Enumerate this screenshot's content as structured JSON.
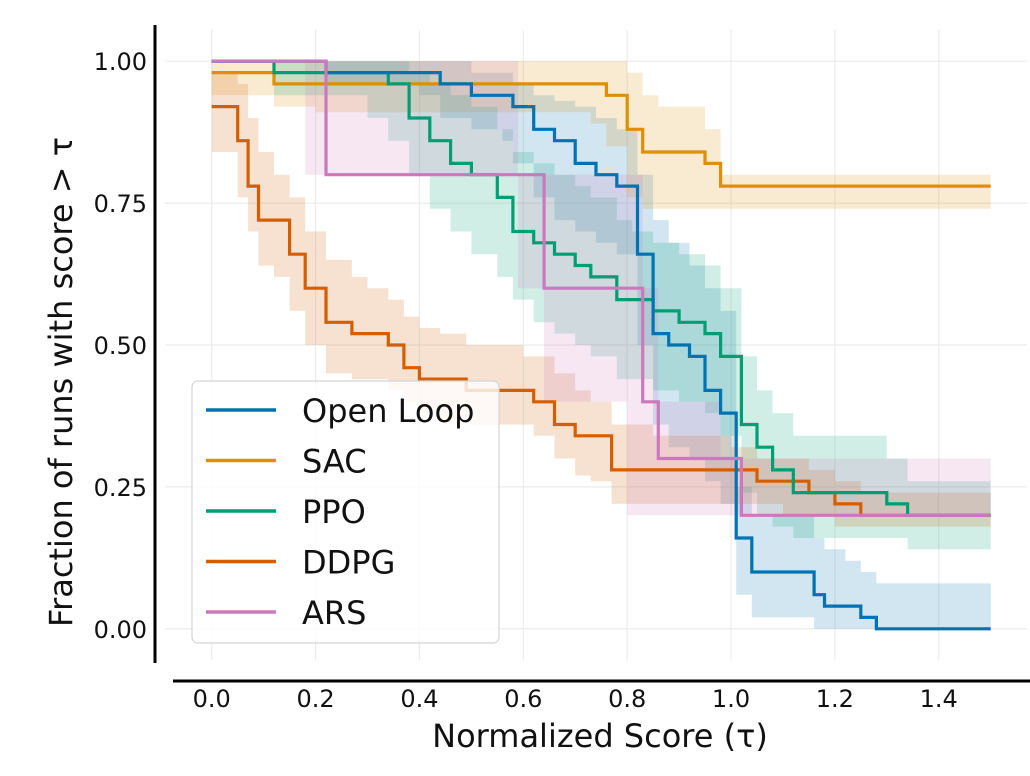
{
  "chart_data": {
    "type": "line",
    "title": "",
    "xlabel": "Normalized Score (τ)",
    "ylabel": "Fraction of runs with score  > τ",
    "xlim": [
      -0.09,
      1.57
    ],
    "ylim": [
      -0.055,
      1.055
    ],
    "x_ticks": [
      0.0,
      0.2,
      0.4,
      0.6,
      0.8,
      1.0,
      1.2,
      1.4
    ],
    "x_tick_labels": [
      "0.0",
      "0.2",
      "0.4",
      "0.6",
      "0.8",
      "1.0",
      "1.2",
      "1.4"
    ],
    "y_ticks": [
      0.0,
      0.25,
      0.5,
      0.75,
      1.0
    ],
    "y_tick_labels": [
      "0.00",
      "0.25",
      "0.50",
      "0.75",
      "1.00"
    ],
    "grid": true,
    "legend_position": "bottom-left",
    "step": true,
    "series": [
      {
        "name": "Open Loop",
        "color": "#0173b2",
        "x": [
          0.0,
          0.2,
          0.22,
          0.4,
          0.44,
          0.5,
          0.56,
          0.58,
          0.62,
          0.66,
          0.7,
          0.74,
          0.78,
          0.82,
          0.85,
          0.88,
          0.92,
          0.95,
          0.98,
          1.01,
          1.04,
          1.12,
          1.16,
          1.18,
          1.22,
          1.25,
          1.28,
          1.5
        ],
        "values": [
          1.0,
          1.0,
          0.98,
          0.98,
          0.96,
          0.94,
          0.94,
          0.92,
          0.88,
          0.86,
          0.82,
          0.8,
          0.78,
          0.66,
          0.52,
          0.5,
          0.48,
          0.42,
          0.38,
          0.16,
          0.1,
          0.1,
          0.06,
          0.04,
          0.04,
          0.02,
          0.0,
          0.0
        ],
        "upper": [
          1.0,
          1.0,
          1.0,
          1.0,
          1.0,
          0.98,
          0.98,
          0.96,
          0.94,
          0.93,
          0.92,
          0.9,
          0.88,
          0.8,
          0.72,
          0.68,
          0.64,
          0.6,
          0.56,
          0.25,
          0.2,
          0.2,
          0.16,
          0.14,
          0.12,
          0.1,
          0.08,
          0.08
        ],
        "lower": [
          1.0,
          1.0,
          0.96,
          0.94,
          0.9,
          0.88,
          0.86,
          0.82,
          0.76,
          0.72,
          0.7,
          0.68,
          0.66,
          0.5,
          0.36,
          0.32,
          0.3,
          0.26,
          0.22,
          0.06,
          0.02,
          0.02,
          0.0,
          0.0,
          0.0,
          0.0,
          0.0,
          0.0
        ]
      },
      {
        "name": "SAC",
        "color": "#de8f05",
        "x": [
          0.0,
          0.09,
          0.12,
          0.2,
          0.3,
          0.5,
          0.6,
          0.73,
          0.76,
          0.8,
          0.83,
          0.86,
          0.92,
          0.95,
          0.98,
          1.5
        ],
        "values": [
          0.98,
          0.98,
          0.96,
          0.96,
          0.96,
          0.96,
          0.96,
          0.96,
          0.94,
          0.88,
          0.84,
          0.84,
          0.84,
          0.82,
          0.78,
          0.78
        ],
        "upper": [
          1.0,
          1.0,
          1.0,
          1.0,
          1.0,
          1.0,
          1.0,
          1.0,
          1.0,
          0.98,
          0.94,
          0.92,
          0.92,
          0.88,
          0.8,
          0.8
        ],
        "lower": [
          0.94,
          0.94,
          0.92,
          0.91,
          0.91,
          0.91,
          0.91,
          0.89,
          0.85,
          0.76,
          0.74,
          0.74,
          0.74,
          0.74,
          0.74,
          0.74
        ]
      },
      {
        "name": "PPO",
        "color": "#029e73",
        "x": [
          0.0,
          0.1,
          0.12,
          0.3,
          0.34,
          0.38,
          0.42,
          0.46,
          0.5,
          0.55,
          0.58,
          0.62,
          0.66,
          0.7,
          0.73,
          0.78,
          0.81,
          0.85,
          0.9,
          0.95,
          0.98,
          1.02,
          1.05,
          1.08,
          1.12,
          1.3,
          1.34,
          1.5
        ],
        "values": [
          1.0,
          1.0,
          0.98,
          0.98,
          0.96,
          0.9,
          0.86,
          0.82,
          0.8,
          0.76,
          0.7,
          0.68,
          0.66,
          0.64,
          0.62,
          0.58,
          0.58,
          0.56,
          0.54,
          0.52,
          0.48,
          0.36,
          0.32,
          0.28,
          0.24,
          0.22,
          0.2,
          0.2
        ],
        "upper": [
          1.0,
          1.0,
          1.0,
          1.0,
          1.0,
          0.98,
          0.96,
          0.94,
          0.92,
          0.88,
          0.84,
          0.82,
          0.8,
          0.78,
          0.76,
          0.72,
          0.7,
          0.68,
          0.66,
          0.64,
          0.6,
          0.48,
          0.42,
          0.38,
          0.34,
          0.3,
          0.26,
          0.26
        ],
        "lower": [
          1.0,
          1.0,
          0.94,
          0.9,
          0.86,
          0.8,
          0.74,
          0.7,
          0.66,
          0.62,
          0.58,
          0.54,
          0.52,
          0.5,
          0.48,
          0.44,
          0.44,
          0.42,
          0.4,
          0.38,
          0.34,
          0.24,
          0.2,
          0.18,
          0.16,
          0.16,
          0.14,
          0.14
        ]
      },
      {
        "name": "DDPG",
        "color": "#d55e00",
        "x": [
          0.0,
          0.02,
          0.05,
          0.07,
          0.09,
          0.12,
          0.15,
          0.18,
          0.22,
          0.27,
          0.3,
          0.34,
          0.37,
          0.4,
          0.44,
          0.49,
          0.55,
          0.6,
          0.62,
          0.66,
          0.7,
          0.73,
          0.77,
          0.8,
          0.85,
          1.0,
          1.05,
          1.1,
          1.15,
          1.2,
          1.25,
          1.5
        ],
        "values": [
          0.92,
          0.92,
          0.86,
          0.78,
          0.72,
          0.72,
          0.66,
          0.6,
          0.54,
          0.52,
          0.52,
          0.5,
          0.46,
          0.44,
          0.44,
          0.42,
          0.42,
          0.42,
          0.4,
          0.36,
          0.34,
          0.34,
          0.28,
          0.28,
          0.28,
          0.28,
          0.26,
          0.26,
          0.24,
          0.22,
          0.2,
          0.2
        ],
        "upper": [
          0.98,
          0.98,
          0.96,
          0.9,
          0.84,
          0.8,
          0.76,
          0.7,
          0.65,
          0.62,
          0.6,
          0.58,
          0.55,
          0.53,
          0.52,
          0.5,
          0.5,
          0.48,
          0.48,
          0.45,
          0.42,
          0.4,
          0.36,
          0.36,
          0.34,
          0.32,
          0.3,
          0.3,
          0.28,
          0.26,
          0.24,
          0.24
        ],
        "lower": [
          0.84,
          0.84,
          0.76,
          0.7,
          0.64,
          0.62,
          0.56,
          0.5,
          0.45,
          0.44,
          0.44,
          0.42,
          0.4,
          0.38,
          0.37,
          0.36,
          0.36,
          0.36,
          0.34,
          0.3,
          0.27,
          0.26,
          0.22,
          0.22,
          0.22,
          0.22,
          0.22,
          0.2,
          0.2,
          0.18,
          0.18,
          0.18
        ]
      },
      {
        "name": "ARS",
        "color": "#cc78bc",
        "x": [
          0.0,
          0.18,
          0.22,
          0.59,
          0.64,
          0.69,
          0.8,
          0.83,
          0.86,
          0.95,
          0.98,
          1.02,
          1.5
        ],
        "values": [
          1.0,
          1.0,
          0.8,
          0.8,
          0.6,
          0.6,
          0.6,
          0.4,
          0.3,
          0.3,
          0.3,
          0.2,
          0.2
        ],
        "upper": [
          1.0,
          1.0,
          1.0,
          0.8,
          0.8,
          0.8,
          0.8,
          0.6,
          0.4,
          0.4,
          0.3,
          0.3,
          0.3
        ],
        "lower": [
          1.0,
          0.8,
          0.8,
          0.6,
          0.4,
          0.4,
          0.2,
          0.2,
          0.2,
          0.2,
          0.2,
          0.2,
          0.2
        ]
      }
    ]
  }
}
